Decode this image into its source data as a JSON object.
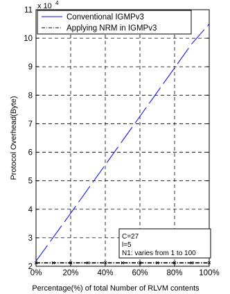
{
  "chart_data": {
    "type": "line",
    "title": "",
    "xlabel": "Percentage(%) of total Number of RLVM contents",
    "ylabel": "Protocol Overhead(Byte)",
    "y_multiplier_label": "x 10",
    "y_multiplier_exponent": "4",
    "xlim": [
      0,
      100
    ],
    "ylim": [
      2,
      11
    ],
    "x_tick_values": [
      0,
      20,
      40,
      60,
      80,
      100
    ],
    "x_tick_labels": [
      "0%",
      "20%",
      "40%",
      "60%",
      "80%",
      "100%"
    ],
    "y_tick_values": [
      2,
      3,
      4,
      5,
      6,
      7,
      8,
      9,
      10,
      11
    ],
    "y_tick_labels": [
      "2",
      "3",
      "4",
      "5",
      "6",
      "7",
      "8",
      "9",
      "10",
      "11"
    ],
    "grid": true,
    "legend_position": "top",
    "series": [
      {
        "name": "Conventional IGMPv3",
        "color": "#0000ff",
        "style": "solid",
        "x": [
          0,
          10,
          20,
          30,
          40,
          50,
          60,
          70,
          80,
          90,
          100
        ],
        "y": [
          2.18,
          3.02,
          3.86,
          4.71,
          5.56,
          6.41,
          7.26,
          8.11,
          8.96,
          9.81,
          10.5
        ]
      },
      {
        "name": "Applying NRM in IGMPv3",
        "color": "#000000",
        "style": "dashdot",
        "marker": "x",
        "x": [
          0,
          10,
          20,
          30,
          40,
          50,
          60,
          70,
          80,
          90,
          100
        ],
        "y": [
          2.12,
          2.12,
          2.12,
          2.12,
          2.12,
          2.12,
          2.12,
          2.12,
          2.12,
          2.12,
          2.12
        ]
      }
    ],
    "annotation": {
      "lines": [
        "C=27",
        "l=5",
        "N1: varies from 1 to 100"
      ]
    }
  }
}
